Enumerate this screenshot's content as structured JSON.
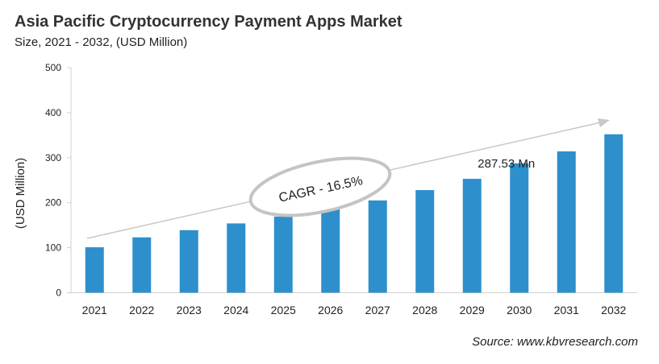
{
  "chart_data": {
    "type": "bar",
    "title": "Asia Pacific Cryptocurrency Payment Apps Market",
    "subtitle": "Size, 2021 - 2032, (USD Million)",
    "xlabel": "",
    "ylabel": "(USD Million)",
    "ylim": [
      0,
      500
    ],
    "yticks": [
      0,
      100,
      200,
      300,
      400,
      500
    ],
    "categories": [
      "2021",
      "2022",
      "2023",
      "2024",
      "2025",
      "2026",
      "2027",
      "2028",
      "2029",
      "2030",
      "2031",
      "2032"
    ],
    "values": [
      101,
      123,
      139,
      154,
      169,
      186,
      205,
      228,
      253,
      287.53,
      314,
      352
    ],
    "bar_color": "#2e8fcd",
    "grid": false,
    "annotations": {
      "cagr": "CAGR - 16.5%",
      "value_label": "287.53 Mn"
    }
  },
  "source": "Source: www.kbvresearch.com"
}
